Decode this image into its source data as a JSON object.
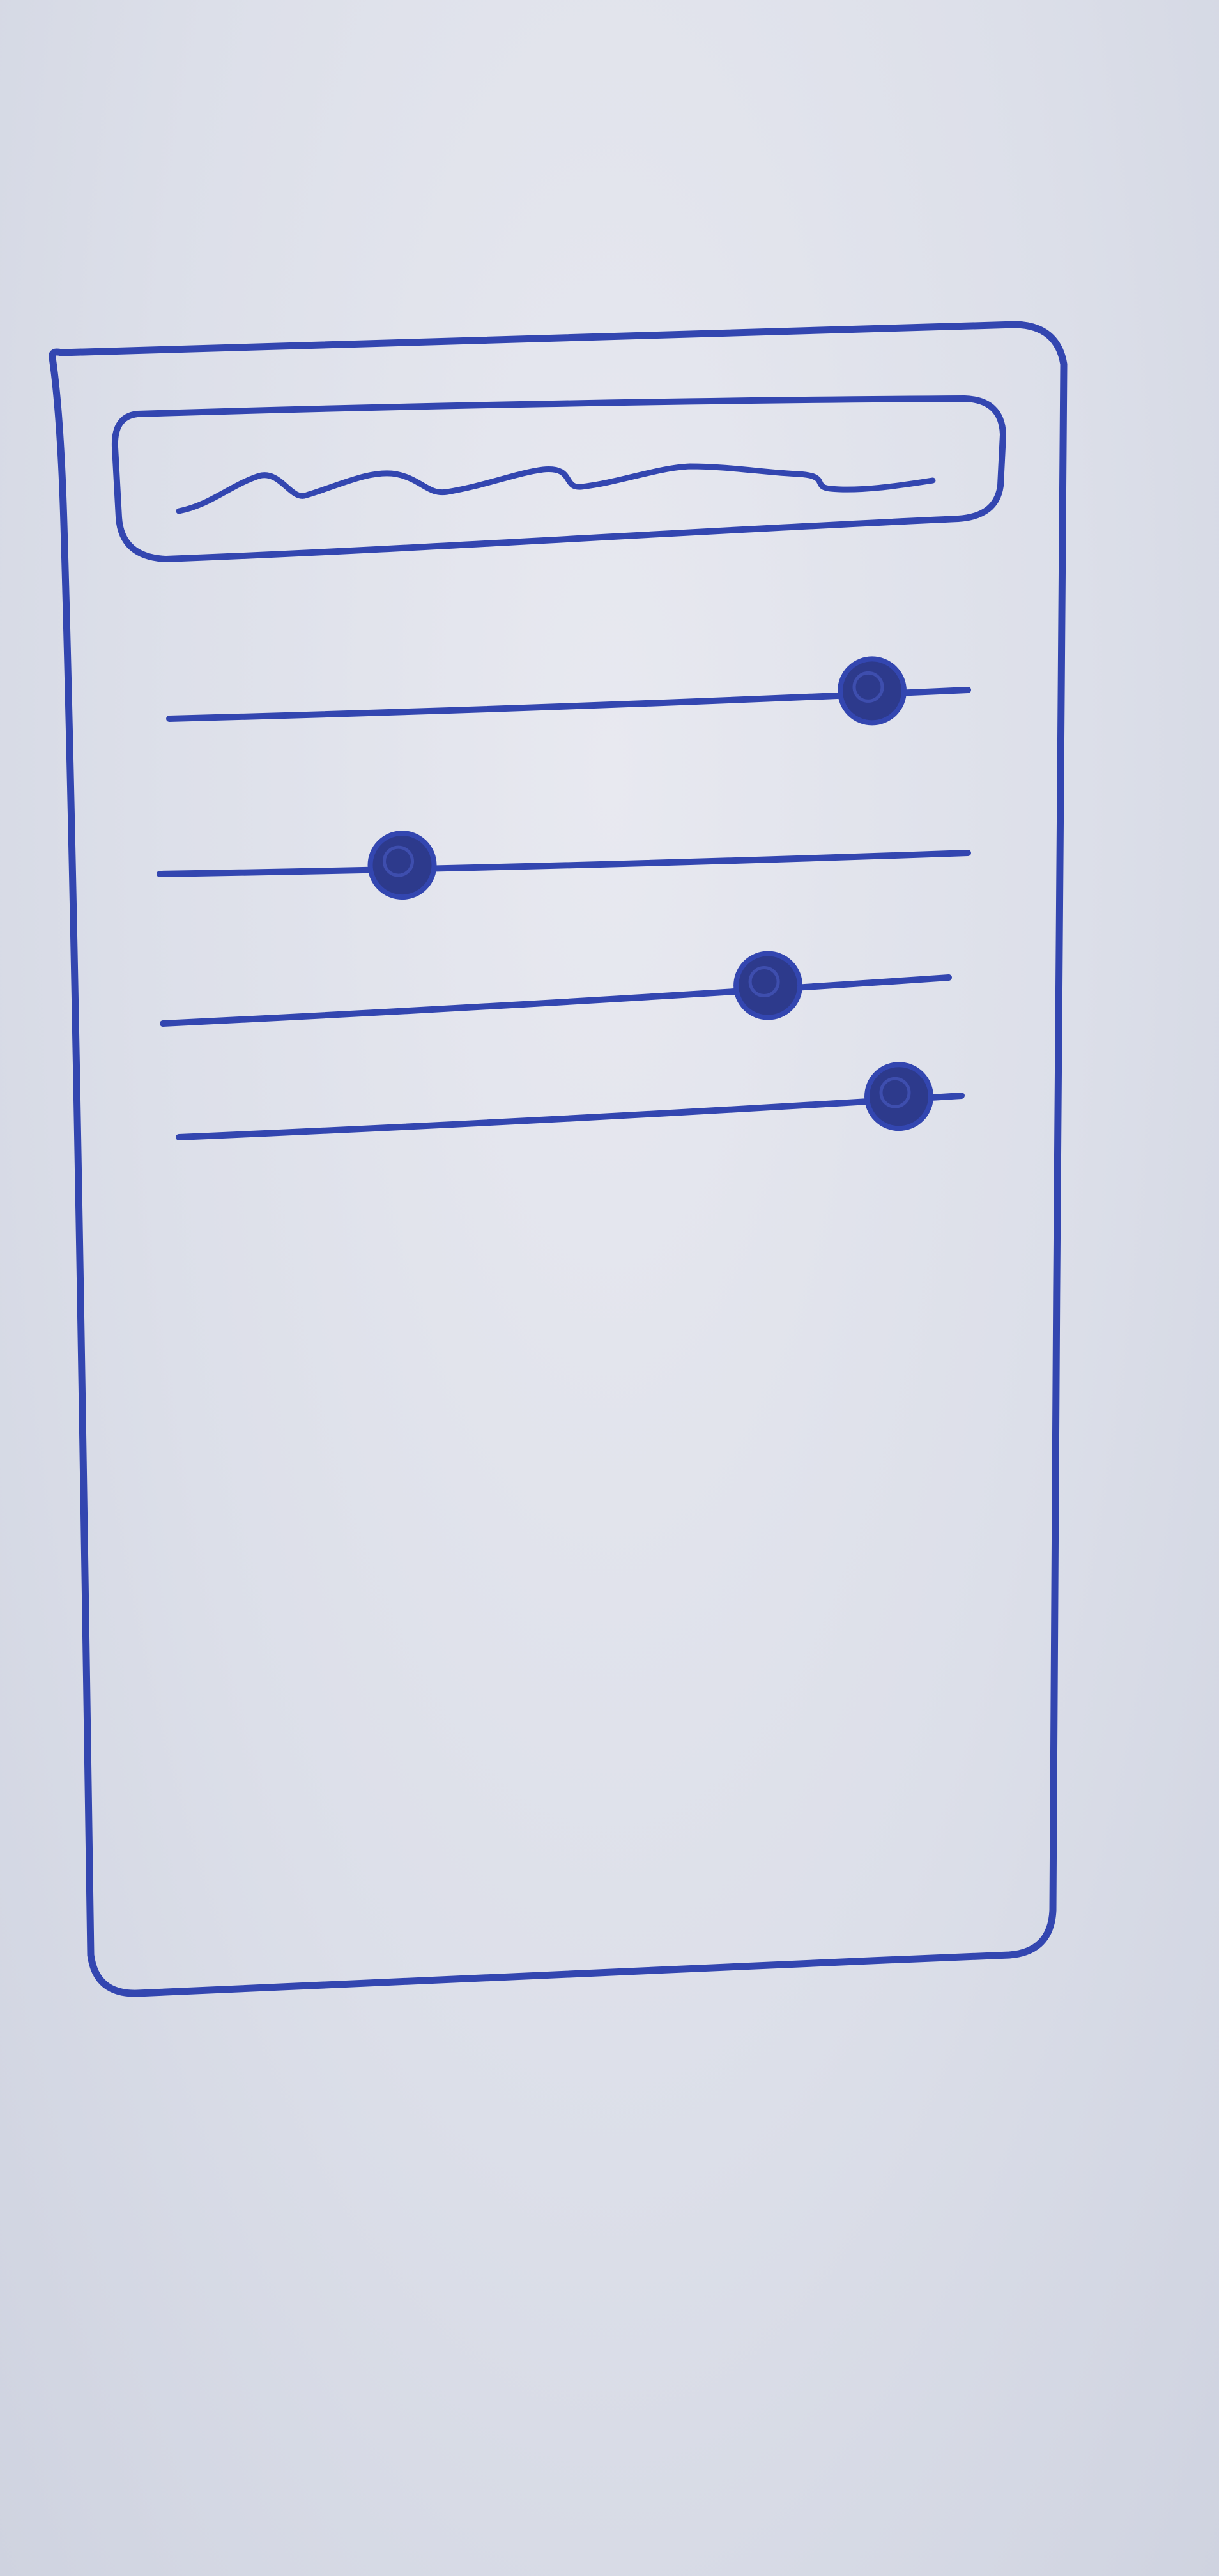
{
  "sketch": {
    "ink_color": "#3346b0",
    "paper_color": "#e4e6ee",
    "header": {
      "text": "",
      "content": "scribble-placeholder"
    },
    "sliders": [
      {
        "name": "slider-1",
        "value": 0.88
      },
      {
        "name": "slider-2",
        "value": 0.3
      },
      {
        "name": "slider-3",
        "value": 0.77
      },
      {
        "name": "slider-4",
        "value": 0.92
      }
    ]
  }
}
